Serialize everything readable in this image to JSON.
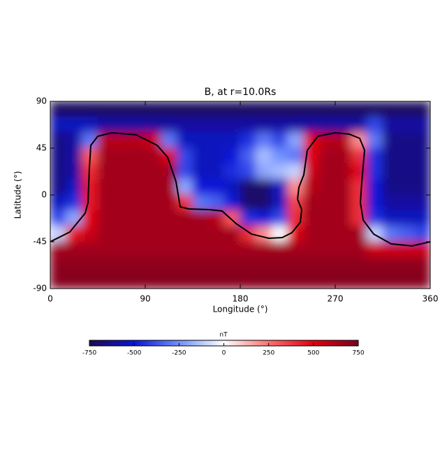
{
  "chart_data": {
    "type": "heatmap",
    "title": "B, at r=10.0Rs",
    "x_label": "Longitude (°)",
    "y_label": "Latitude (°)",
    "x": [
      7.5,
      22.5,
      37.5,
      52.5,
      67.5,
      82.5,
      97.5,
      112.5,
      127.5,
      142.5,
      157.5,
      172.5,
      187.5,
      202.5,
      217.5,
      232.5,
      247.5,
      262.5,
      277.5,
      292.5,
      307.5,
      322.5,
      337.5,
      352.5
    ],
    "y": [
      82.5,
      67.5,
      52.5,
      37.5,
      22.5,
      7.5,
      -7.5,
      -22.5,
      -37.5,
      -52.5,
      -67.5,
      -82.5
    ],
    "z": [
      [
        -720,
        -720,
        -720,
        -720,
        -720,
        -720,
        -720,
        -720,
        -720,
        -720,
        -720,
        -720,
        -720,
        -720,
        -720,
        -720,
        -720,
        -720,
        -720,
        -720,
        -720,
        -720,
        -720,
        -720
      ],
      [
        -550,
        -550,
        -550,
        -600,
        -600,
        -600,
        -600,
        -600,
        -600,
        -600,
        -600,
        -600,
        -600,
        -600,
        -600,
        -600,
        -600,
        -600,
        -600,
        -600,
        -400,
        -600,
        -600,
        -600
      ],
      [
        -650,
        -600,
        -300,
        600,
        600,
        600,
        550,
        -300,
        -550,
        -550,
        -550,
        -550,
        -450,
        -300,
        -400,
        -200,
        500,
        600,
        600,
        200,
        -300,
        -650,
        -650,
        -650
      ],
      [
        -650,
        -600,
        300,
        650,
        650,
        650,
        650,
        500,
        -400,
        -550,
        -550,
        -500,
        -350,
        -150,
        -250,
        -300,
        500,
        650,
        650,
        400,
        -450,
        -650,
        -650,
        -650
      ],
      [
        -650,
        -600,
        400,
        650,
        650,
        650,
        650,
        650,
        -400,
        -550,
        -550,
        -450,
        -400,
        -200,
        -150,
        -100,
        550,
        650,
        650,
        500,
        -450,
        -650,
        -650,
        -650
      ],
      [
        -650,
        -550,
        450,
        650,
        650,
        650,
        650,
        650,
        -200,
        -500,
        -500,
        -550,
        -700,
        -700,
        -550,
        200,
        600,
        650,
        650,
        400,
        -500,
        -650,
        -650,
        -650
      ],
      [
        -550,
        -450,
        450,
        650,
        650,
        650,
        650,
        650,
        400,
        -300,
        -350,
        -500,
        -700,
        -700,
        -550,
        350,
        650,
        650,
        650,
        400,
        -500,
        -600,
        -600,
        -600
      ],
      [
        -400,
        -200,
        500,
        650,
        650,
        650,
        650,
        650,
        650,
        650,
        600,
        300,
        -450,
        -500,
        -400,
        400,
        650,
        650,
        650,
        400,
        -450,
        -550,
        -550,
        -550
      ],
      [
        -100,
        450,
        550,
        650,
        650,
        650,
        650,
        650,
        650,
        650,
        650,
        650,
        400,
        200,
        0,
        500,
        650,
        650,
        650,
        650,
        -100,
        -300,
        -350,
        -400
      ],
      [
        650,
        650,
        650,
        650,
        650,
        650,
        650,
        650,
        650,
        650,
        650,
        650,
        650,
        650,
        650,
        650,
        650,
        650,
        650,
        650,
        550,
        550,
        550,
        550
      ],
      [
        700,
        700,
        700,
        700,
        700,
        700,
        700,
        700,
        700,
        700,
        700,
        700,
        700,
        700,
        700,
        700,
        700,
        700,
        700,
        700,
        700,
        700,
        700,
        700
      ],
      [
        720,
        720,
        720,
        720,
        720,
        720,
        720,
        720,
        720,
        720,
        720,
        720,
        720,
        720,
        720,
        720,
        720,
        720,
        720,
        720,
        720,
        720,
        720,
        720
      ]
    ],
    "xlim": [
      0,
      360
    ],
    "xticks": [
      0,
      90,
      180,
      270,
      360
    ],
    "ylim": [
      -90,
      90
    ],
    "yticks": [
      -90,
      -45,
      0,
      45,
      90
    ],
    "colorbar_label": "nT",
    "clim": [
      -750,
      750
    ],
    "cticks": [
      -750,
      -500,
      -250,
      0,
      250,
      500,
      750
    ],
    "colorscale": [
      "#1e0a4f",
      "#0a14d8",
      "#7090ff",
      "#ffffff",
      "#ff7070",
      "#e00010",
      "#7a0020"
    ]
  }
}
